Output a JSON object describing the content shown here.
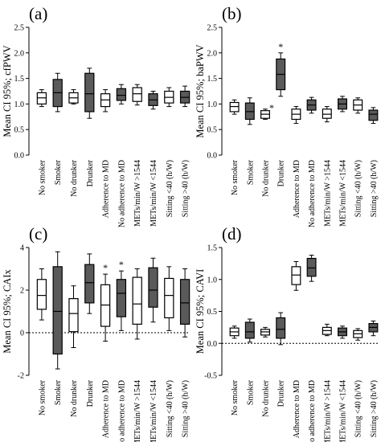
{
  "chart_data": [
    {
      "type": "box",
      "panel_label": "(a)",
      "ylabel": "Mean CI 95%; cfPWV",
      "ylim": [
        0,
        2.5
      ],
      "yticks": [
        "0.0",
        "0.5",
        "1.0",
        "1.5",
        "2.0",
        "2.5"
      ],
      "ref_line": null,
      "categories": [
        "No smoker",
        "Smoker",
        "No drunker",
        "Drunker",
        "Adherence to MD",
        "No adherence to MD",
        "METs/min/W >1544",
        "METs/min/W <1544",
        "Sitting <40 (h/W)",
        "Sitting >40 (h/W)"
      ],
      "fill": [
        "white",
        "grey",
        "white",
        "grey",
        "white",
        "grey",
        "white",
        "grey",
        "white",
        "grey"
      ],
      "boxes": [
        {
          "min": 0.95,
          "q1": 1.0,
          "median": 1.12,
          "q3": 1.22,
          "max": 1.28
        },
        {
          "min": 0.85,
          "q1": 0.95,
          "median": 1.22,
          "q3": 1.48,
          "max": 1.6
        },
        {
          "min": 1.0,
          "q1": 1.02,
          "median": 1.12,
          "q3": 1.22,
          "max": 1.28
        },
        {
          "min": 0.72,
          "q1": 0.85,
          "median": 1.2,
          "q3": 1.6,
          "max": 1.7
        },
        {
          "min": 0.85,
          "q1": 0.95,
          "median": 1.08,
          "q3": 1.2,
          "max": 1.28
        },
        {
          "min": 1.0,
          "q1": 1.07,
          "median": 1.17,
          "q3": 1.3,
          "max": 1.38
        },
        {
          "min": 0.98,
          "q1": 1.05,
          "median": 1.2,
          "q3": 1.32,
          "max": 1.38
        },
        {
          "min": 0.9,
          "q1": 0.97,
          "median": 1.08,
          "q3": 1.2,
          "max": 1.25
        },
        {
          "min": 0.95,
          "q1": 1.02,
          "median": 1.13,
          "q3": 1.25,
          "max": 1.32
        },
        {
          "min": 0.95,
          "q1": 1.02,
          "median": 1.13,
          "q3": 1.25,
          "max": 1.35
        }
      ],
      "stars": []
    },
    {
      "type": "box",
      "panel_label": "(b)",
      "ylabel": "Mean CI 95%; baPWV",
      "ylim": [
        0,
        2.5
      ],
      "yticks": [
        "0.0",
        "0.5",
        "1.0",
        "1.5",
        "2.0",
        "2.5"
      ],
      "ref_line": null,
      "categories": [
        "No smoker",
        "Smoker",
        "No drunker",
        "Drunker",
        "Adherence to MD",
        "No adherence to MD",
        "METs/min/W >1544",
        "METs/min/W <1544",
        "Sitting <40 (h/W)",
        "Sitting >40 (h/W)"
      ],
      "fill": [
        "white",
        "grey",
        "white",
        "grey",
        "white",
        "grey",
        "white",
        "grey",
        "white",
        "grey"
      ],
      "boxes": [
        {
          "min": 0.8,
          "q1": 0.85,
          "median": 0.95,
          "q3": 1.03,
          "max": 1.08
        },
        {
          "min": 0.6,
          "q1": 0.7,
          "median": 0.85,
          "q3": 1.02,
          "max": 1.12
        },
        {
          "min": 0.7,
          "q1": 0.72,
          "median": 0.8,
          "q3": 0.87,
          "max": 0.9
        },
        {
          "min": 1.15,
          "q1": 1.28,
          "median": 1.58,
          "q3": 1.88,
          "max": 2.0
        },
        {
          "min": 0.62,
          "q1": 0.7,
          "median": 0.8,
          "q3": 0.9,
          "max": 0.95
        },
        {
          "min": 0.82,
          "q1": 0.88,
          "median": 0.98,
          "q3": 1.08,
          "max": 1.13
        },
        {
          "min": 0.65,
          "q1": 0.72,
          "median": 0.8,
          "q3": 0.9,
          "max": 0.95
        },
        {
          "min": 0.85,
          "q1": 0.9,
          "median": 1.0,
          "q3": 1.1,
          "max": 1.15
        },
        {
          "min": 0.82,
          "q1": 0.88,
          "median": 0.98,
          "q3": 1.08,
          "max": 1.12
        },
        {
          "min": 0.62,
          "q1": 0.68,
          "median": 0.8,
          "q3": 0.88,
          "max": 0.93
        }
      ],
      "stars": [
        {
          "index": 2,
          "text": "*"
        },
        {
          "index": 3,
          "text": "*"
        }
      ]
    },
    {
      "type": "box",
      "panel_label": "(c)",
      "ylabel": "Mean CI 95%; CAIx",
      "ylim": [
        -2,
        4
      ],
      "yticks": [
        "-2",
        "0",
        "2",
        "4"
      ],
      "ref_line": 0,
      "categories": [
        "No smoker",
        "Smoker",
        "No drunker",
        "Drunker",
        "Adherence to MD",
        "No adherence to MD",
        "METs/min/W >1544",
        "METs/min/W <1544",
        "Sitting <40 (h/W)",
        "Sitting >40 (h/W)"
      ],
      "fill": [
        "white",
        "grey",
        "white",
        "grey",
        "white",
        "grey",
        "white",
        "grey",
        "white",
        "grey"
      ],
      "boxes": [
        {
          "min": 0.6,
          "q1": 1.1,
          "median": 1.75,
          "q3": 2.5,
          "max": 3.0
        },
        {
          "min": -1.7,
          "q1": -1.0,
          "median": 1.0,
          "q3": 3.1,
          "max": 3.8
        },
        {
          "min": -0.7,
          "q1": 0.05,
          "median": 0.9,
          "q3": 1.6,
          "max": 2.2
        },
        {
          "min": 0.9,
          "q1": 1.4,
          "median": 2.35,
          "q3": 3.2,
          "max": 3.7
        },
        {
          "min": -0.4,
          "q1": 0.3,
          "median": 1.3,
          "q3": 2.25,
          "max": 2.75
        },
        {
          "min": 0.1,
          "q1": 0.75,
          "median": 1.85,
          "q3": 2.5,
          "max": 2.9
        },
        {
          "min": -0.3,
          "q1": 0.4,
          "median": 1.35,
          "q3": 2.6,
          "max": 3.0
        },
        {
          "min": 0.5,
          "q1": 1.2,
          "median": 2.0,
          "q3": 3.05,
          "max": 3.5
        },
        {
          "min": 0.1,
          "q1": 0.7,
          "median": 1.75,
          "q3": 2.55,
          "max": 3.1
        },
        {
          "min": -0.2,
          "q1": 0.4,
          "median": 1.4,
          "q3": 2.5,
          "max": 3.0
        }
      ],
      "stars": [
        {
          "index": 4,
          "text": "*"
        },
        {
          "index": 5,
          "text": "*"
        }
      ]
    },
    {
      "type": "box",
      "panel_label": "(d)",
      "ylabel": "Mean CI 95%; CAVI",
      "ylim": [
        -0.5,
        1.5
      ],
      "yticks": [
        "-0.5",
        "0.0",
        "0.5",
        "1.0",
        "1.5"
      ],
      "ref_line": 0,
      "categories": [
        "No smoker",
        "Smoker",
        "No drunker",
        "Drunker",
        "Adherence to MD",
        "No adherence to MD",
        "METs/min/W >1544",
        "METs/min/W <1544",
        "Sitting <40 (h/W)",
        "Sitting >40 (h/W)"
      ],
      "fill": [
        "white",
        "grey",
        "white",
        "grey",
        "white",
        "grey",
        "white",
        "grey",
        "white",
        "grey"
      ],
      "boxes": [
        {
          "min": 0.08,
          "q1": 0.12,
          "median": 0.18,
          "q3": 0.24,
          "max": 0.27
        },
        {
          "min": 0.02,
          "q1": 0.08,
          "median": 0.18,
          "q3": 0.33,
          "max": 0.38
        },
        {
          "min": 0.1,
          "q1": 0.13,
          "median": 0.18,
          "q3": 0.22,
          "max": 0.25
        },
        {
          "min": -0.02,
          "q1": 0.08,
          "median": 0.22,
          "q3": 0.4,
          "max": 0.48
        },
        {
          "min": 0.83,
          "q1": 0.92,
          "median": 1.07,
          "q3": 1.2,
          "max": 1.28
        },
        {
          "min": 0.97,
          "q1": 1.05,
          "median": 1.18,
          "q3": 1.33,
          "max": 1.38
        },
        {
          "min": 0.12,
          "q1": 0.14,
          "median": 0.2,
          "q3": 0.25,
          "max": 0.3
        },
        {
          "min": 0.08,
          "q1": 0.12,
          "median": 0.18,
          "q3": 0.24,
          "max": 0.27
        },
        {
          "min": 0.05,
          "q1": 0.09,
          "median": 0.15,
          "q3": 0.2,
          "max": 0.23
        },
        {
          "min": 0.12,
          "q1": 0.18,
          "median": 0.25,
          "q3": 0.31,
          "max": 0.35
        }
      ],
      "stars": []
    }
  ]
}
